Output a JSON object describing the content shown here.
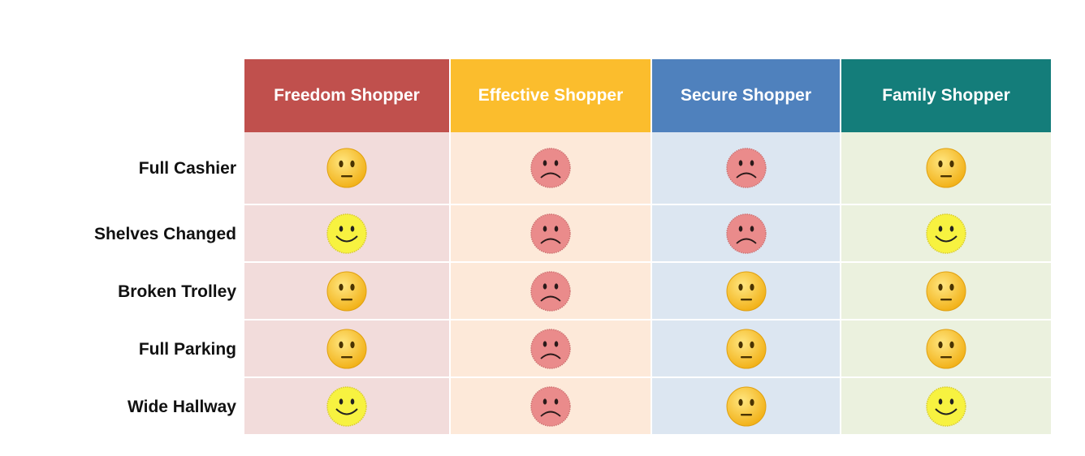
{
  "columns": [
    {
      "label": "Freedom Shopper",
      "header_color": "#c0504d",
      "cell_color": "#f2dcdb"
    },
    {
      "label": "Effective Shopper",
      "header_color": "#fbbd2d",
      "cell_color": "#fde9d9"
    },
    {
      "label": "Secure Shopper",
      "header_color": "#4f81bd",
      "cell_color": "#dce6f1"
    },
    {
      "label": "Family Shopper",
      "header_color": "#147d7a",
      "cell_color": "#ebf1de"
    }
  ],
  "rows": [
    {
      "label": "Full Cashier",
      "faces": [
        "neutral-face-icon",
        "sad-face-icon",
        "sad-face-icon",
        "neutral-face-icon"
      ]
    },
    {
      "label": "Shelves Changed",
      "faces": [
        "happy-face-icon",
        "sad-face-icon",
        "sad-face-icon",
        "happy-face-icon"
      ]
    },
    {
      "label": "Broken Trolley",
      "faces": [
        "neutral-face-icon",
        "sad-face-icon",
        "neutral-face-icon",
        "neutral-face-icon"
      ]
    },
    {
      "label": "Full Parking",
      "faces": [
        "neutral-face-icon",
        "sad-face-icon",
        "neutral-face-icon",
        "neutral-face-icon"
      ]
    },
    {
      "label": "Wide Hallway",
      "faces": [
        "happy-face-icon",
        "sad-face-icon",
        "neutral-face-icon",
        "happy-face-icon"
      ]
    }
  ]
}
